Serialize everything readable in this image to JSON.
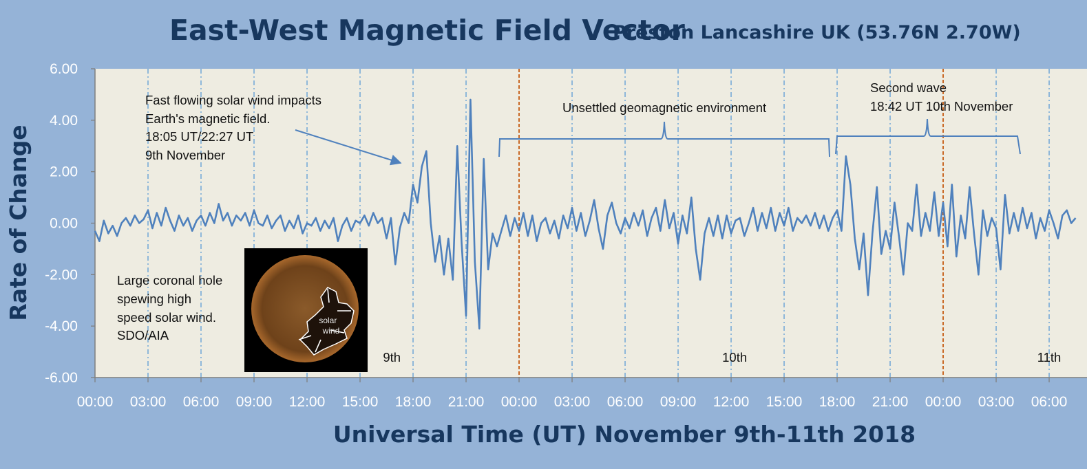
{
  "chart_data": {
    "type": "line",
    "title": "East-West Magnetic Field Vector",
    "subtitle": "Preston Lancashire UK (53.76N 2.70W)",
    "xlabel": "Universal Time (UT) November 9th-11th 2018",
    "ylabel": "Rate of Change",
    "ylim": [
      -6,
      6
    ],
    "xlim_hours": [
      0,
      55.5
    ],
    "x_tick_labels": [
      "00:00",
      "03:00",
      "06:00",
      "09:00",
      "12:00",
      "15:00",
      "18:00",
      "21:00",
      "00:00",
      "03:00",
      "06:00",
      "09:00",
      "12:00",
      "15:00",
      "18:00",
      "21:00",
      "00:00",
      "03:00",
      "06:00"
    ],
    "y_tick_labels": [
      "6.00",
      "4.00",
      "2.00",
      "0.00",
      "-2.00",
      "-4.00",
      "-6.00"
    ],
    "day_labels": [
      {
        "text": "9th",
        "hour": 16.8
      },
      {
        "text": "10th",
        "hour": 36.2
      },
      {
        "text": "11th",
        "hour": 54.0
      }
    ],
    "grid": "vertical dash-dot at every 3 hours",
    "day_boundaries_hours": [
      24,
      48
    ],
    "colors": {
      "line": "#4f81bd",
      "grid": "#5b9bd5",
      "boundary": "#c55a11",
      "plot_bg": "#eeece1",
      "bg": "#95b3d7",
      "title": "#17375e"
    },
    "series": [
      {
        "points": [
          [
            0.0,
            -0.3
          ],
          [
            0.25,
            -0.7
          ],
          [
            0.5,
            0.1
          ],
          [
            0.75,
            -0.4
          ],
          [
            1.0,
            -0.1
          ],
          [
            1.25,
            -0.5
          ],
          [
            1.5,
            0.0
          ],
          [
            1.75,
            0.2
          ],
          [
            2.0,
            -0.1
          ],
          [
            2.25,
            0.3
          ],
          [
            2.5,
            0.0
          ],
          [
            2.75,
            0.15
          ],
          [
            3.0,
            0.5
          ],
          [
            3.25,
            -0.2
          ],
          [
            3.5,
            0.4
          ],
          [
            3.75,
            -0.1
          ],
          [
            4.0,
            0.6
          ],
          [
            4.25,
            0.1
          ],
          [
            4.5,
            -0.3
          ],
          [
            4.75,
            0.3
          ],
          [
            5.0,
            -0.1
          ],
          [
            5.25,
            0.2
          ],
          [
            5.5,
            -0.3
          ],
          [
            5.75,
            0.1
          ],
          [
            6.0,
            0.3
          ],
          [
            6.25,
            -0.1
          ],
          [
            6.5,
            0.4
          ],
          [
            6.75,
            0.0
          ],
          [
            7.0,
            0.75
          ],
          [
            7.25,
            0.1
          ],
          [
            7.5,
            0.4
          ],
          [
            7.75,
            -0.1
          ],
          [
            8.0,
            0.3
          ],
          [
            8.25,
            0.1
          ],
          [
            8.5,
            0.4
          ],
          [
            8.75,
            -0.1
          ],
          [
            9.0,
            0.5
          ],
          [
            9.25,
            0.0
          ],
          [
            9.5,
            -0.1
          ],
          [
            9.75,
            0.3
          ],
          [
            10.0,
            -0.2
          ],
          [
            10.25,
            0.1
          ],
          [
            10.5,
            0.3
          ],
          [
            10.75,
            -0.3
          ],
          [
            11.0,
            0.1
          ],
          [
            11.25,
            -0.2
          ],
          [
            11.5,
            0.3
          ],
          [
            11.75,
            -0.4
          ],
          [
            12.0,
            0.0
          ],
          [
            12.25,
            -0.1
          ],
          [
            12.5,
            0.2
          ],
          [
            12.75,
            -0.3
          ],
          [
            13.0,
            0.1
          ],
          [
            13.25,
            -0.2
          ],
          [
            13.5,
            0.2
          ],
          [
            13.75,
            -0.7
          ],
          [
            14.0,
            -0.1
          ],
          [
            14.25,
            0.2
          ],
          [
            14.5,
            -0.3
          ],
          [
            14.75,
            0.1
          ],
          [
            15.0,
            0.0
          ],
          [
            15.25,
            0.3
          ],
          [
            15.5,
            -0.1
          ],
          [
            15.75,
            0.4
          ],
          [
            16.0,
            0.0
          ],
          [
            16.25,
            0.2
          ],
          [
            16.5,
            -0.6
          ],
          [
            16.75,
            0.2
          ],
          [
            17.0,
            -1.6
          ],
          [
            17.25,
            -0.2
          ],
          [
            17.5,
            0.4
          ],
          [
            17.75,
            0.0
          ],
          [
            18.0,
            1.5
          ],
          [
            18.25,
            0.8
          ],
          [
            18.5,
            2.2
          ],
          [
            18.75,
            2.8
          ],
          [
            19.0,
            0.0
          ],
          [
            19.25,
            -1.5
          ],
          [
            19.5,
            -0.5
          ],
          [
            19.75,
            -2.0
          ],
          [
            20.0,
            -0.6
          ],
          [
            20.25,
            -2.2
          ],
          [
            20.5,
            3.0
          ],
          [
            20.75,
            -0.8
          ],
          [
            21.0,
            -3.6
          ],
          [
            21.25,
            4.8
          ],
          [
            21.5,
            -1.5
          ],
          [
            21.75,
            -4.1
          ],
          [
            22.0,
            2.5
          ],
          [
            22.25,
            -1.8
          ],
          [
            22.5,
            -0.4
          ],
          [
            22.75,
            -0.9
          ],
          [
            23.0,
            -0.3
          ],
          [
            23.25,
            0.3
          ],
          [
            23.5,
            -0.5
          ],
          [
            23.75,
            0.2
          ],
          [
            24.0,
            -0.3
          ],
          [
            24.25,
            0.4
          ],
          [
            24.5,
            -0.5
          ],
          [
            24.75,
            0.3
          ],
          [
            25.0,
            -0.7
          ],
          [
            25.25,
            0.0
          ],
          [
            25.5,
            0.2
          ],
          [
            25.75,
            -0.4
          ],
          [
            26.0,
            0.1
          ],
          [
            26.25,
            -0.6
          ],
          [
            26.5,
            0.3
          ],
          [
            26.75,
            -0.2
          ],
          [
            27.0,
            0.6
          ],
          [
            27.25,
            -0.3
          ],
          [
            27.5,
            0.4
          ],
          [
            27.75,
            -0.5
          ],
          [
            28.0,
            0.1
          ],
          [
            28.25,
            0.9
          ],
          [
            28.5,
            -0.2
          ],
          [
            28.75,
            -1.0
          ],
          [
            29.0,
            0.3
          ],
          [
            29.25,
            0.8
          ],
          [
            29.5,
            0.0
          ],
          [
            29.75,
            -0.4
          ],
          [
            30.0,
            0.2
          ],
          [
            30.25,
            -0.2
          ],
          [
            30.5,
            0.4
          ],
          [
            30.75,
            -0.1
          ],
          [
            31.0,
            0.5
          ],
          [
            31.25,
            -0.5
          ],
          [
            31.5,
            0.2
          ],
          [
            31.75,
            0.6
          ],
          [
            32.0,
            -0.3
          ],
          [
            32.25,
            0.9
          ],
          [
            32.5,
            -0.2
          ],
          [
            32.75,
            0.4
          ],
          [
            33.0,
            -0.8
          ],
          [
            33.25,
            0.3
          ],
          [
            33.5,
            -0.4
          ],
          [
            33.75,
            1.0
          ],
          [
            34.0,
            -1.0
          ],
          [
            34.25,
            -2.2
          ],
          [
            34.5,
            -0.4
          ],
          [
            34.75,
            0.2
          ],
          [
            35.0,
            -0.5
          ],
          [
            35.25,
            0.3
          ],
          [
            35.5,
            -0.6
          ],
          [
            35.75,
            0.3
          ],
          [
            36.0,
            -0.4
          ],
          [
            36.25,
            0.1
          ],
          [
            36.5,
            0.2
          ],
          [
            36.75,
            -0.5
          ],
          [
            37.0,
            0.0
          ],
          [
            37.25,
            0.6
          ],
          [
            37.5,
            -0.3
          ],
          [
            37.75,
            0.4
          ],
          [
            38.0,
            -0.2
          ],
          [
            38.25,
            0.6
          ],
          [
            38.5,
            -0.3
          ],
          [
            38.75,
            0.4
          ],
          [
            39.0,
            -0.1
          ],
          [
            39.25,
            0.6
          ],
          [
            39.5,
            -0.3
          ],
          [
            39.75,
            0.2
          ],
          [
            40.0,
            0.0
          ],
          [
            40.25,
            0.3
          ],
          [
            40.5,
            -0.1
          ],
          [
            40.75,
            0.4
          ],
          [
            41.0,
            -0.2
          ],
          [
            41.25,
            0.3
          ],
          [
            41.5,
            -0.3
          ],
          [
            41.75,
            0.2
          ],
          [
            42.0,
            0.5
          ],
          [
            42.25,
            -0.3
          ],
          [
            42.5,
            2.6
          ],
          [
            42.75,
            1.5
          ],
          [
            43.0,
            -0.6
          ],
          [
            43.25,
            -1.8
          ],
          [
            43.5,
            -0.4
          ],
          [
            43.75,
            -2.8
          ],
          [
            44.0,
            -0.4
          ],
          [
            44.25,
            1.4
          ],
          [
            44.5,
            -1.2
          ],
          [
            44.75,
            -0.3
          ],
          [
            45.0,
            -1.0
          ],
          [
            45.25,
            0.8
          ],
          [
            45.5,
            -0.5
          ],
          [
            45.75,
            -2.0
          ],
          [
            46.0,
            0.0
          ],
          [
            46.25,
            -0.3
          ],
          [
            46.5,
            1.5
          ],
          [
            46.75,
            -0.5
          ],
          [
            47.0,
            0.4
          ],
          [
            47.25,
            -0.3
          ],
          [
            47.5,
            1.2
          ],
          [
            47.75,
            -0.5
          ],
          [
            48.0,
            0.8
          ],
          [
            48.25,
            -0.9
          ],
          [
            48.5,
            1.5
          ],
          [
            48.75,
            -1.3
          ],
          [
            49.0,
            0.3
          ],
          [
            49.25,
            -0.6
          ],
          [
            49.5,
            1.4
          ],
          [
            49.75,
            -0.4
          ],
          [
            50.0,
            -2.0
          ],
          [
            50.25,
            0.5
          ],
          [
            50.5,
            -0.5
          ],
          [
            50.75,
            0.2
          ],
          [
            51.0,
            -0.2
          ],
          [
            51.25,
            -1.8
          ],
          [
            51.5,
            1.1
          ],
          [
            51.75,
            -0.4
          ],
          [
            52.0,
            0.4
          ],
          [
            52.25,
            -0.3
          ],
          [
            52.5,
            0.6
          ],
          [
            52.75,
            -0.2
          ],
          [
            53.0,
            0.4
          ],
          [
            53.25,
            -0.6
          ],
          [
            53.5,
            0.2
          ],
          [
            53.75,
            -0.3
          ],
          [
            54.0,
            0.5
          ],
          [
            54.25,
            0.0
          ],
          [
            54.5,
            -0.6
          ],
          [
            54.75,
            0.3
          ],
          [
            55.0,
            0.5
          ],
          [
            55.25,
            0.0
          ],
          [
            55.5,
            0.2
          ]
        ]
      }
    ],
    "annotations": {
      "solar_wind": [
        "Fast flowing solar wind impacts",
        "Earth's magnetic field.",
        "18:05 UT/22:27 UT",
        "9th November"
      ],
      "unsettled": "Unsettled geomagnetic environment",
      "second_wave": [
        "Second wave",
        "18:42 UT 10th November"
      ],
      "coronal_hole": [
        "Large coronal hole",
        "spewing high",
        "speed solar wind.",
        "SDO/AIA"
      ]
    },
    "inset": {
      "label": [
        "solar",
        "wind"
      ],
      "colors": {
        "sun": "#7a4a1e",
        "hole": "#1e120a",
        "border": "#ffffff"
      }
    }
  }
}
